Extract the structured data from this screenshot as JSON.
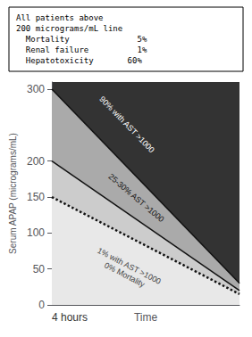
{
  "chart_data": {
    "type": "line",
    "x": [
      0,
      10
    ],
    "xlim": [
      0,
      10
    ],
    "ylim": [
      0,
      310
    ],
    "yticks": [
      0,
      50,
      100,
      150,
      200,
      300
    ],
    "xlabel": "Time",
    "ylabel": "Serum APAP (micrograms/mL)",
    "tick_labels": "y",
    "grid": false,
    "colors": [
      "#333333",
      "#aaaaaa",
      "#cccccc",
      "#e8e8e8"
    ],
    "series": [
      {
        "values": [
          300,
          30
        ],
        "color": "#111111",
        "line_style": "solid"
      },
      {
        "values": [
          200,
          20
        ],
        "color": "#111111",
        "line_style": "solid"
      },
      {
        "values": [
          150,
          15
        ],
        "color": "#111111",
        "line_style": "dotted"
      }
    ],
    "annotations": [
      "All patients above\n200 micrograms/mL line\n  Mortality              5%\n  Renal failure          1%\n  Hepatotoxicity       60%",
      "4 hours",
      "90% with AST >1000",
      "25-30% AST >1000",
      "1% with AST >1000\n0% Mortality"
    ]
  }
}
